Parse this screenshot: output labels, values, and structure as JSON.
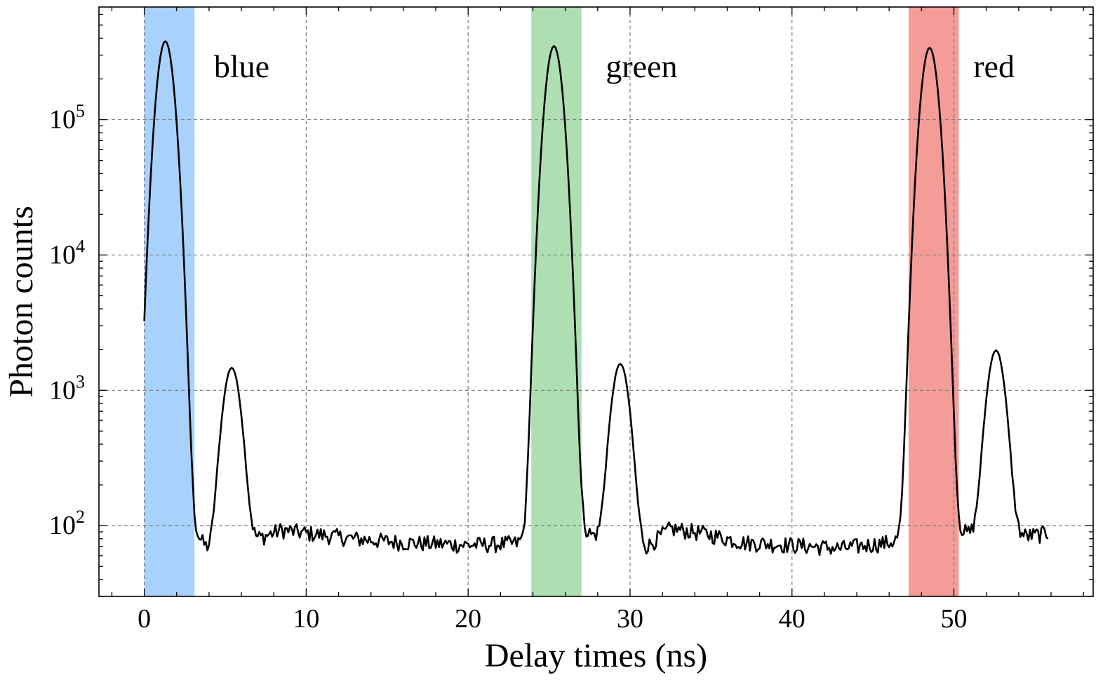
{
  "chart_data": {
    "type": "line",
    "xlabel": "Delay times (ns)",
    "ylabel": "Photon counts",
    "xlim": [
      -2.8,
      58.6
    ],
    "ylim": [
      30,
      680000
    ],
    "yscale": "log",
    "grid": true,
    "x_ticks": [
      0,
      10,
      20,
      30,
      40,
      50
    ],
    "x_tick_labels": [
      "0",
      "10",
      "20",
      "30",
      "40",
      "50"
    ],
    "y_ticks": [
      100,
      1000,
      10000,
      100000
    ],
    "y_tick_labels": [
      {
        "base": "10",
        "exp": "2"
      },
      {
        "base": "10",
        "exp": "3"
      },
      {
        "base": "10",
        "exp": "4"
      },
      {
        "base": "10",
        "exp": "5"
      }
    ],
    "regions": [
      {
        "label": "blue",
        "x_start": 0.0,
        "x_end": 3.1,
        "color": "#a8d1fb",
        "label_x": 4.3,
        "label_y": 250000
      },
      {
        "label": "green",
        "x_start": 23.9,
        "x_end": 27.0,
        "color": "#addfb3",
        "label_x": 28.5,
        "label_y": 250000
      },
      {
        "label": "red",
        "x_start": 47.2,
        "x_end": 50.3,
        "color": "#f49d98",
        "label_x": 51.2,
        "label_y": 250000
      }
    ],
    "series": [
      {
        "color": "#000000",
        "peaks": [
          {
            "center": 1.3,
            "height": 380000,
            "sigma": 0.42
          },
          {
            "center": 5.4,
            "height": 1400,
            "sigma": 0.45
          },
          {
            "center": 25.3,
            "height": 350000,
            "sigma": 0.42
          },
          {
            "center": 29.4,
            "height": 1500,
            "sigma": 0.45
          },
          {
            "center": 48.5,
            "height": 340000,
            "sigma": 0.42
          },
          {
            "center": 52.6,
            "height": 1900,
            "sigma": 0.45
          }
        ],
        "baseline": [
          [
            0.0,
            82
          ],
          [
            2.5,
            105
          ],
          [
            3.5,
            78
          ],
          [
            4.0,
            62
          ],
          [
            7.0,
            80
          ],
          [
            8.5,
            93
          ],
          [
            10.0,
            88
          ],
          [
            13.0,
            80
          ],
          [
            16.0,
            75
          ],
          [
            20.0,
            72
          ],
          [
            23.0,
            74
          ],
          [
            23.9,
            82
          ],
          [
            27.0,
            95
          ],
          [
            28.5,
            72
          ],
          [
            31.0,
            68
          ],
          [
            32.5,
            95
          ],
          [
            34.5,
            88
          ],
          [
            37.0,
            75
          ],
          [
            40.0,
            72
          ],
          [
            43.0,
            68
          ],
          [
            46.0,
            75
          ],
          [
            47.2,
            82
          ],
          [
            50.5,
            90
          ],
          [
            52.0,
            80
          ],
          [
            55.0,
            85
          ],
          [
            55.8,
            88
          ]
        ],
        "x_start": 0.0,
        "x_end": 55.8
      }
    ]
  }
}
